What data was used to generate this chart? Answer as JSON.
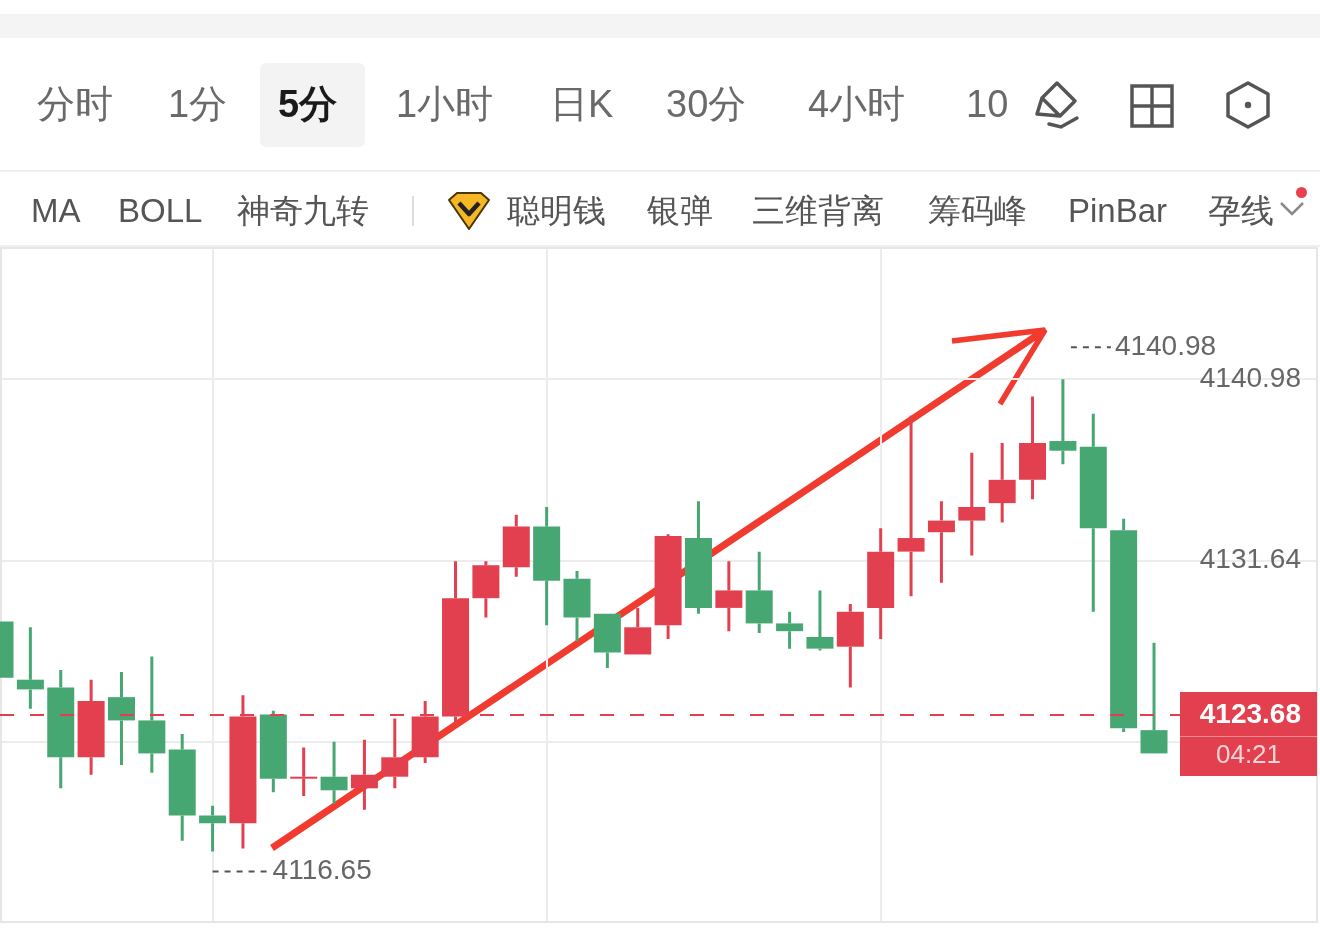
{
  "chart_data": {
    "type": "candlestick",
    "categories": [
      null,
      null,
      null,
      null,
      null,
      null,
      null,
      null,
      null,
      null,
      null,
      null,
      null,
      null,
      null,
      null,
      null,
      null,
      null,
      null,
      null,
      null,
      null,
      null,
      null,
      null,
      null,
      null,
      null,
      null,
      null,
      null,
      null,
      null,
      null,
      null,
      null,
      null,
      null
    ],
    "ohlc": [
      [
        4128.5,
        4128.5,
        4125.6,
        4125.6
      ],
      [
        4125.5,
        4128.2,
        4124.0,
        4125.0
      ],
      [
        4125.1,
        4126.0,
        4119.9,
        4121.5
      ],
      [
        4121.5,
        4125.5,
        4120.6,
        4124.4
      ],
      [
        4124.6,
        4125.9,
        4121.1,
        4123.4
      ],
      [
        4123.4,
        4126.7,
        4120.7,
        4121.7
      ],
      [
        4121.9,
        4122.7,
        4117.2,
        4118.5
      ],
      [
        4118.5,
        4119.0,
        4116.65,
        4118.1
      ],
      [
        4118.1,
        4124.7,
        4116.8,
        4123.6
      ],
      [
        4123.7,
        4123.9,
        4119.7,
        4120.4
      ],
      [
        4120.4,
        4122.0,
        4119.5,
        4120.5
      ],
      [
        4120.5,
        4122.3,
        4119.1,
        4119.8
      ],
      [
        4119.9,
        4122.4,
        4118.8,
        4120.6
      ],
      [
        4120.5,
        4123.5,
        4119.9,
        4121.5
      ],
      [
        4121.5,
        4124.4,
        4121.2,
        4123.6
      ],
      [
        4123.6,
        4131.6,
        4123.2,
        4129.7
      ],
      [
        4129.7,
        4131.6,
        4128.7,
        4131.4
      ],
      [
        4131.3,
        4134.0,
        4130.8,
        4133.4
      ],
      [
        4133.4,
        4134.4,
        4128.3,
        4130.6
      ],
      [
        4130.7,
        4131.1,
        4127.5,
        4128.7
      ],
      [
        4128.9,
        4128.9,
        4126.1,
        4126.9
      ],
      [
        4126.8,
        4129.2,
        4126.8,
        4128.2
      ],
      [
        4128.3,
        4133.0,
        4127.6,
        4132.9
      ],
      [
        4132.8,
        4134.7,
        4128.9,
        4129.2
      ],
      [
        4129.2,
        4131.6,
        4128.0,
        4130.1
      ],
      [
        4130.1,
        4132.1,
        4127.9,
        4128.4
      ],
      [
        4128.4,
        4129.0,
        4127.1,
        4128.0
      ],
      [
        4127.7,
        4130.1,
        4127.0,
        4127.1
      ],
      [
        4127.2,
        4129.4,
        4125.1,
        4129.0
      ],
      [
        4129.2,
        4133.3,
        4127.6,
        4132.1
      ],
      [
        4132.1,
        4139.1,
        4129.8,
        4132.8
      ],
      [
        4133.1,
        4134.7,
        4130.5,
        4133.7
      ],
      [
        4133.7,
        4137.2,
        4131.9,
        4134.4
      ],
      [
        4134.6,
        4137.7,
        4133.6,
        4135.8
      ],
      [
        4135.8,
        4140.1,
        4134.8,
        4137.7
      ],
      [
        4137.8,
        4140.98,
        4136.6,
        4137.3
      ],
      [
        4137.5,
        4139.2,
        4129.0,
        4133.3
      ],
      [
        4133.2,
        4133.8,
        4122.8,
        4123.0
      ],
      [
        4122.9,
        4127.4,
        4121.7,
        4121.7
      ]
    ],
    "colors": [
      "#47a772",
      "#47a772",
      "#47a772",
      "#e2404f",
      "#47a772",
      "#47a772",
      "#47a772",
      "#47a772",
      "#e2404f",
      "#47a772",
      "#e2404f",
      "#47a772",
      "#e2404f",
      "#e2404f",
      "#e2404f",
      "#e2404f",
      "#e2404f",
      "#e2404f",
      "#47a772",
      "#47a772",
      "#47a772",
      "#e2404f",
      "#e2404f",
      "#47a772",
      "#e2404f",
      "#47a772",
      "#47a772",
      "#47a772",
      "#e2404f",
      "#e2404f",
      "#e2404f",
      "#e2404f",
      "#e2404f",
      "#e2404f",
      "#e2404f",
      "#47a772",
      "#47a772",
      "#47a772",
      "#47a772"
    ],
    "ylim": [
      4112.96,
      4147.8
    ],
    "yticks": [
      4140.98,
      4131.64,
      {
        "value": 4122.3,
        "label": null
      }
    ],
    "grid": true,
    "tick_labels": "y",
    "ref_lines": [
      {
        "axis": "y",
        "value": 4123.68,
        "label": "4123.68",
        "color": "#e2404f",
        "line_style": "dashed"
      }
    ],
    "annotations": [
      "分时",
      "1分",
      "5分",
      "1小时",
      "日K",
      "30分",
      "4小时",
      "10",
      "MA",
      "BOLL",
      "神奇九转",
      "聪明钱",
      "银弹",
      "三维背离",
      "筹码峰",
      "PinBar",
      "孕线",
      "04:21",
      "4140.98",
      "4116.65"
    ]
  }
}
